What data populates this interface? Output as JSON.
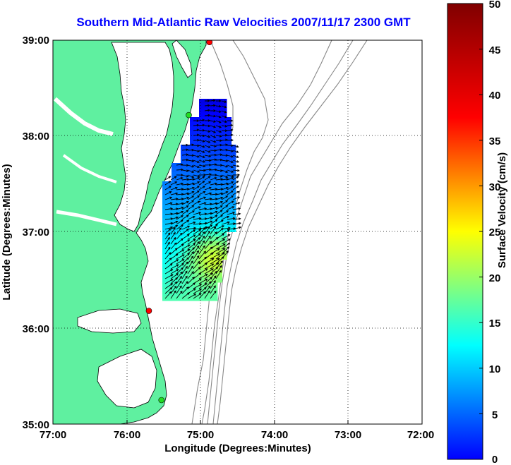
{
  "title": "Southern Mid-Atlantic Raw Velocities 2007/11/17 2300 GMT",
  "x_axis": {
    "label": "Longitude (Degrees:Minutes)",
    "ticks": [
      "77:00",
      "76:00",
      "75:00",
      "74:00",
      "73:00",
      "72:00"
    ]
  },
  "y_axis": {
    "label": "Latitude (Degrees:Minutes)",
    "ticks": [
      "39:00",
      "38:00",
      "37:00",
      "36:00",
      "35:00"
    ]
  },
  "colorbar": {
    "label": "Surface Velocity (cm/s)",
    "ticks": [
      "50",
      "45",
      "40",
      "35",
      "30",
      "25",
      "20",
      "15",
      "10",
      "5",
      "0"
    ],
    "min": 0,
    "max": 50
  },
  "colors": {
    "land": "#5ff0a0",
    "title": "#0000ff",
    "bathymetry": "#888888"
  },
  "stations": [
    {
      "color": "#ff0000",
      "lon": -74.88,
      "lat": 38.98
    },
    {
      "color": "#22dd22",
      "lon": -75.16,
      "lat": 38.22
    },
    {
      "color": "#ff0000",
      "lon": -75.7,
      "lat": 36.18
    },
    {
      "color": "#22dd22",
      "lon": -75.53,
      "lat": 35.25
    }
  ]
}
